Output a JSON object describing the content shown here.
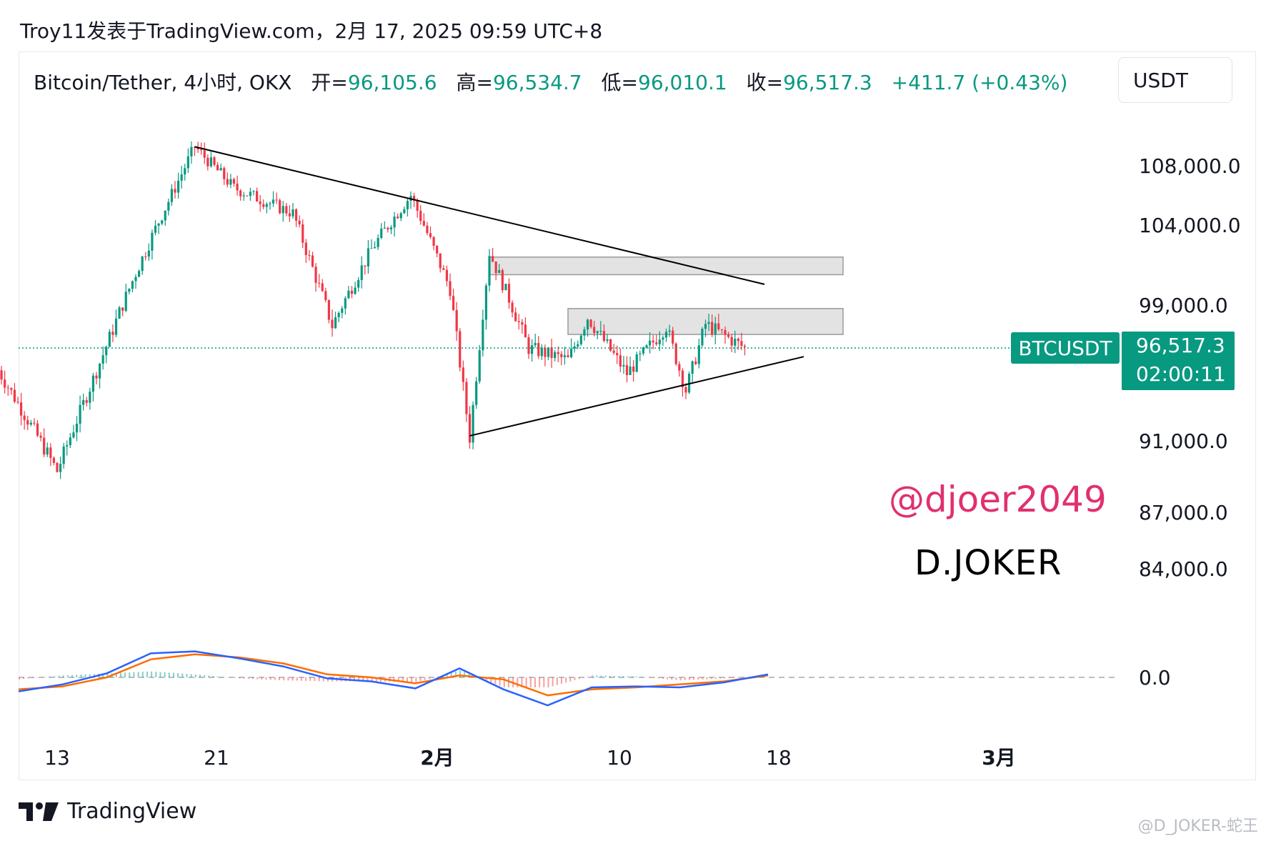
{
  "byline": "Troy11发表于TradingView.com，2月 17, 2025 09:59 UTC+8",
  "legend": {
    "symbol": "Bitcoin/Tether, 4小时, OKX",
    "open_label": "开=",
    "open_value": "96,105.6",
    "high_label": "高=",
    "high_value": "96,534.7",
    "low_label": "低=",
    "low_value": "96,010.1",
    "close_label": "收=",
    "close_value": "96,517.3",
    "change": "+411.7 (+0.43%)"
  },
  "currency": "USDT",
  "price_tag": {
    "symbol": "BTCUSDT",
    "price": "96,517.3",
    "countdown": "02:00:11"
  },
  "watermarks": {
    "handle": "@djoer2049",
    "name": "D.JOKER",
    "corner": "@D_JOKER-蛇王"
  },
  "footer": {
    "brand": "TradingView"
  },
  "colors": {
    "up": "#089981",
    "down": "#f23645",
    "macd": "#2962ff",
    "signal": "#ff6d00",
    "trendline": "#000000"
  },
  "chart_data": {
    "type": "candlestick",
    "symbol": "BTCUSDT",
    "timeframe": "4小时",
    "y_axis_ticks": [
      108000,
      104000,
      99000,
      91000,
      87000,
      84000
    ],
    "y_axis_tick_labels": [
      "108,000.0",
      "104,000.0",
      "99,000.0",
      "91,000.0",
      "87,000.0",
      "84,000.0"
    ],
    "x_axis_tick_labels": [
      "13",
      "21",
      "2月",
      "10",
      "18",
      "3月"
    ],
    "last_price": 96517.3,
    "swing_points": [
      {
        "date": "2025-01-10",
        "price": 95200
      },
      {
        "date": "2025-01-13",
        "price": 89300
      },
      {
        "date": "2025-01-17",
        "price": 101000
      },
      {
        "date": "2025-01-20",
        "price": 109300
      },
      {
        "date": "2025-01-22",
        "price": 106500
      },
      {
        "date": "2025-01-25",
        "price": 104800
      },
      {
        "date": "2025-01-27",
        "price": 97800
      },
      {
        "date": "2025-01-29",
        "price": 102500
      },
      {
        "date": "2025-01-31",
        "price": 106000
      },
      {
        "date": "2025-02-02",
        "price": 100000
      },
      {
        "date": "2025-02-03",
        "price": 91200
      },
      {
        "date": "2025-02-04",
        "price": 102300
      },
      {
        "date": "2025-02-06",
        "price": 96500
      },
      {
        "date": "2025-02-08",
        "price": 95800
      },
      {
        "date": "2025-02-09",
        "price": 98300
      },
      {
        "date": "2025-02-11",
        "price": 95000
      },
      {
        "date": "2025-02-13",
        "price": 97800
      },
      {
        "date": "2025-02-14",
        "price": 94000
      },
      {
        "date": "2025-02-15",
        "price": 97900
      },
      {
        "date": "2025-02-17",
        "price": 96517
      }
    ],
    "trendlines": [
      {
        "name": "upper",
        "from": {
          "date": "2025-01-20",
          "price": 109300
        },
        "to": {
          "date": "2025-02-18",
          "price": 100300
        }
      },
      {
        "name": "lower",
        "from": {
          "date": "2025-02-03",
          "price": 91300
        },
        "to": {
          "date": "2025-02-20",
          "price": 96000
        }
      }
    ],
    "zones": [
      {
        "from_date": "2025-02-04",
        "to_date": "2025-02-22",
        "low": 100900,
        "high": 102000
      },
      {
        "from_date": "2025-02-08",
        "to_date": "2025-02-22",
        "low": 97300,
        "high": 98800
      }
    ],
    "indicator": {
      "type": "MACD",
      "zero_label": "0.0",
      "macd_line": [
        -1.4,
        -0.7,
        0.4,
        2.4,
        2.6,
        1.9,
        1.1,
        -0.1,
        -0.4,
        -1.1,
        0.9,
        -1.2,
        -2.8,
        -1.0,
        -0.9,
        -1.0,
        -0.5,
        0.3
      ],
      "signal_line": [
        -1.2,
        -0.9,
        0.0,
        1.8,
        2.3,
        2.0,
        1.4,
        0.3,
        0.0,
        -0.6,
        0.2,
        -0.2,
        -1.8,
        -1.2,
        -1.0,
        -0.7,
        -0.4,
        0.2
      ]
    }
  }
}
